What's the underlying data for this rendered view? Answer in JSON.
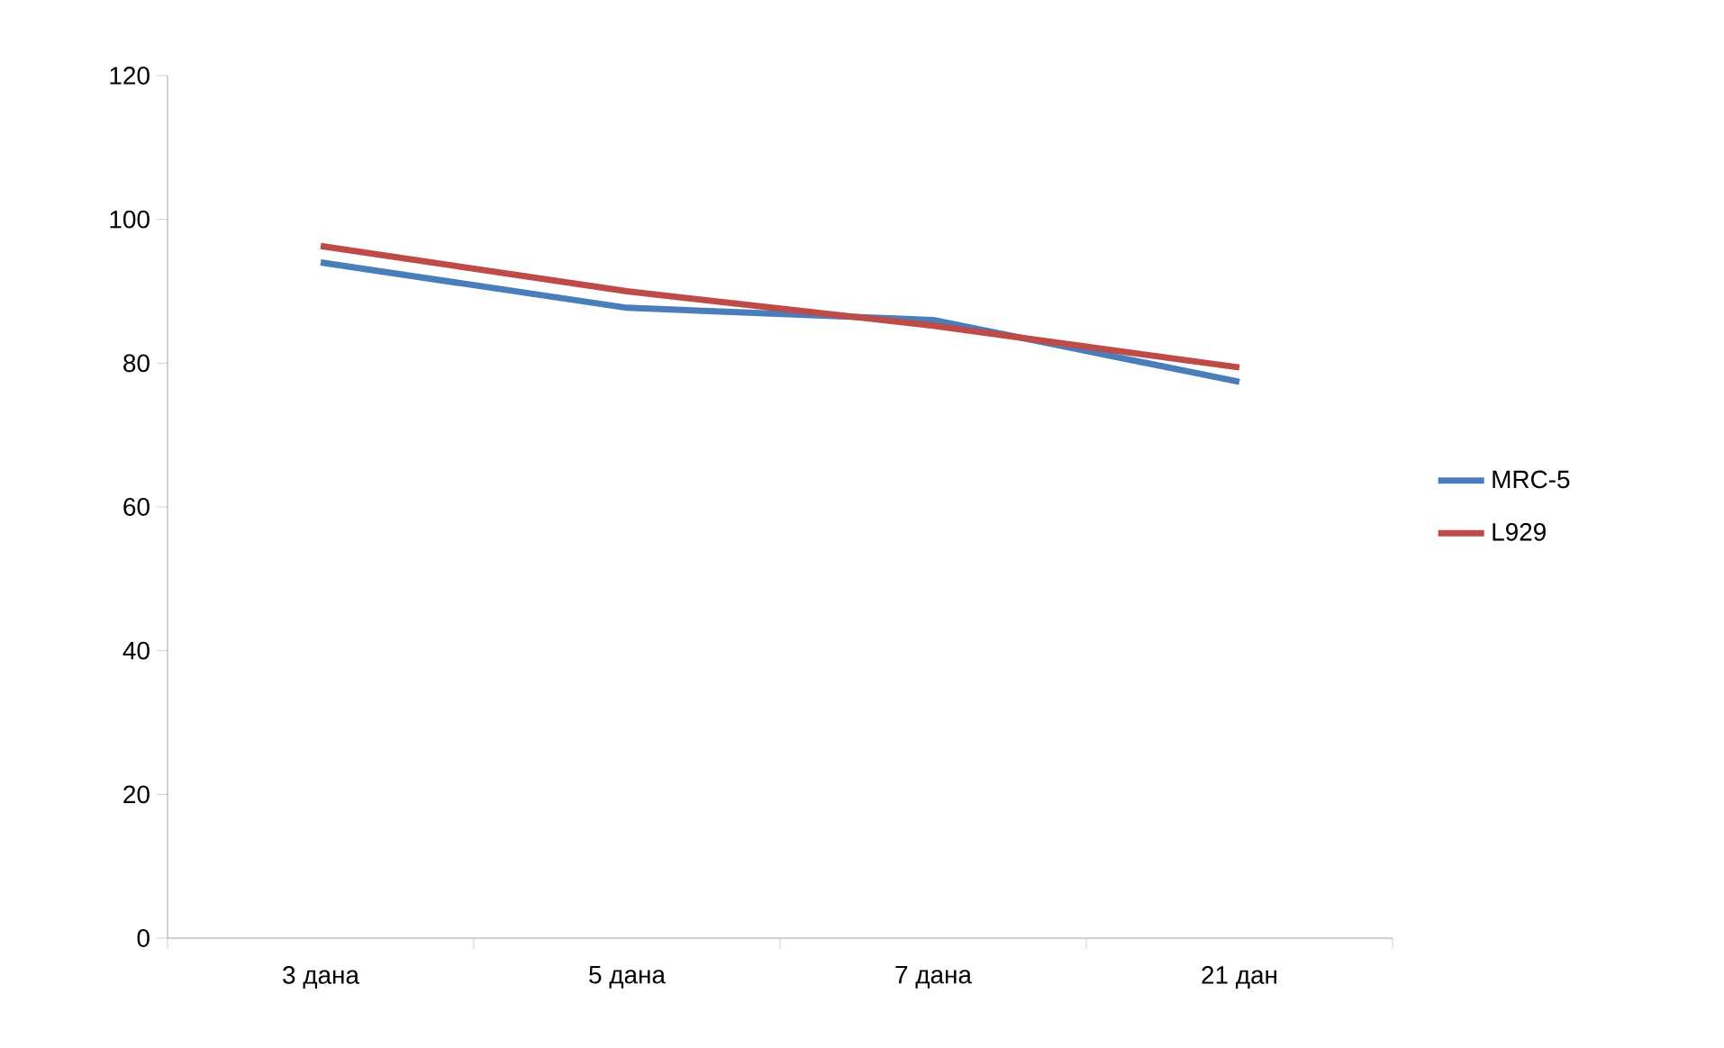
{
  "chart_data": {
    "type": "line",
    "categories": [
      "3 дана",
      "5 дана",
      "7 дана",
      "21 дан"
    ],
    "series": [
      {
        "name": "MRC-5",
        "color": "#4a7ebb",
        "values": [
          94,
          87.7,
          86,
          77.4
        ]
      },
      {
        "name": "L929",
        "color": "#be4b48",
        "values": [
          96.3,
          90,
          85.2,
          79.4
        ]
      }
    ],
    "ylim": [
      0,
      120
    ],
    "yticks": [
      0,
      20,
      40,
      60,
      80,
      100,
      120
    ],
    "grid": false,
    "legend": "right",
    "marker": "none",
    "line_style": "solid"
  }
}
